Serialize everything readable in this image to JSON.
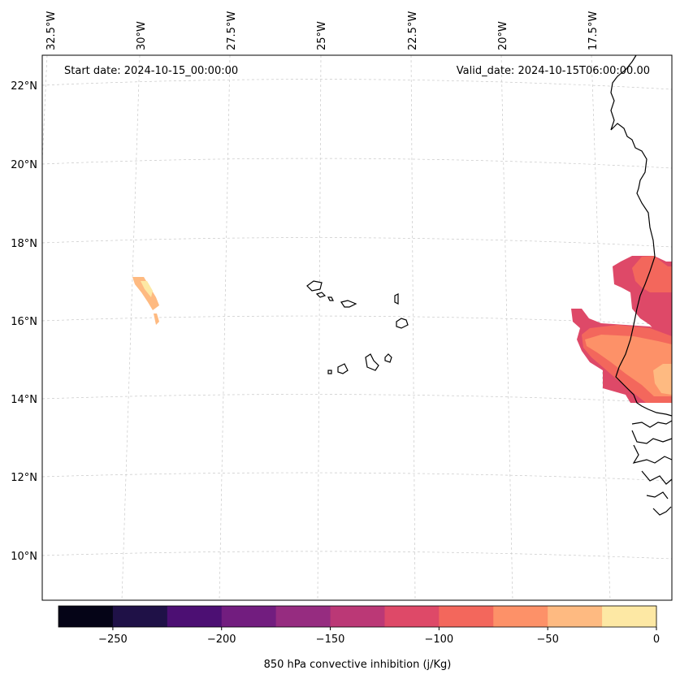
{
  "map": {
    "start_date": "Start date: 2024-10-15_00:00:00",
    "valid_date": "Valid_date: 2024-10-15T06:00:00.00",
    "lon_labels": [
      "32.5°W",
      "30°W",
      "27.5°W",
      "25°W",
      "22.5°W",
      "20°W",
      "17.5°W"
    ],
    "lat_labels": [
      "22°N",
      "20°N",
      "18°N",
      "16°N",
      "14°N",
      "12°N",
      "10°N"
    ]
  },
  "colorbar": {
    "label": "850 hPa convective inhibition (j/Kg)",
    "ticks": [
      "−250",
      "−200",
      "−150",
      "−100",
      "−50",
      "0"
    ],
    "colors": [
      "#050417",
      "#1f1147",
      "#4c0f73",
      "#721d7f",
      "#962c80",
      "#bb3876",
      "#de4968",
      "#f3675c",
      "#fd9168",
      "#feba81",
      "#fde8a4"
    ]
  }
}
